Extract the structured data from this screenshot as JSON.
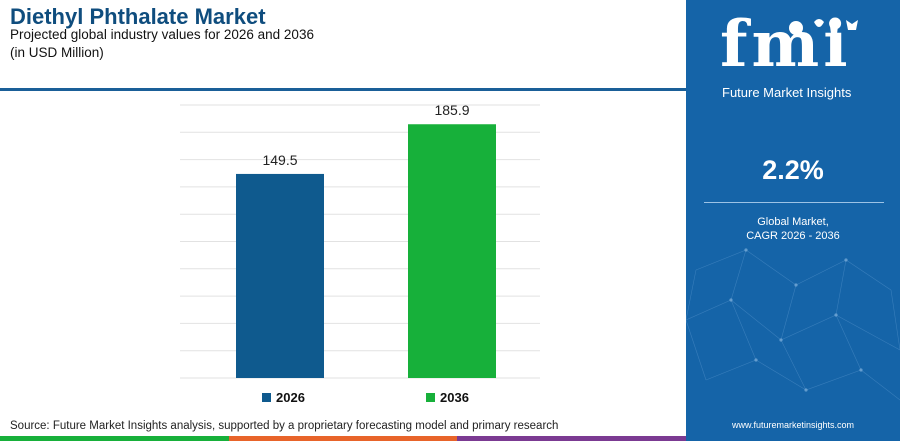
{
  "header": {
    "title": "Diethyl Phthalate Market",
    "subtitle": "Projected global industry values for 2026 and 2036",
    "unit": "(in USD Million)"
  },
  "chart_data": {
    "type": "bar",
    "categories": [
      "2026",
      "2036"
    ],
    "values": [
      149.5,
      185.9
    ],
    "data_labels": [
      "149.5",
      "185.9"
    ],
    "colors": [
      "#0f5a8e",
      "#17b03a"
    ],
    "ylim": [
      0,
      200
    ],
    "grid": true,
    "legend": [
      "2026",
      "2036"
    ],
    "legend_position": "bottom"
  },
  "footer": {
    "source": "Source: Future Market Insights analysis, supported by a proprietary forecasting model and primary research",
    "bar_colors": [
      "#17b03a",
      "#e8642a",
      "#7b3a92"
    ]
  },
  "panel": {
    "logo_text": "fmi",
    "logo_subtitle": "Future Market Insights",
    "cagr_value": "2.2%",
    "cagr_label_1": "Global Market,",
    "cagr_label_2": "CAGR 2026 - 2036",
    "url": "www.futuremarketinsights.com",
    "background": "#1564a8"
  }
}
